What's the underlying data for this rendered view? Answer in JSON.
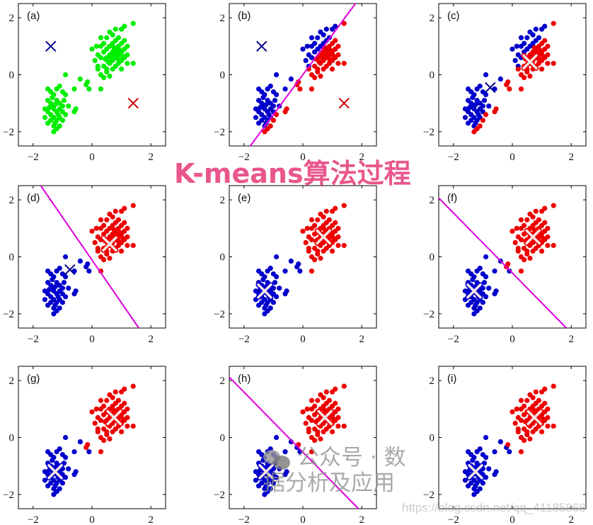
{
  "overlay_title": "K-means算法过程",
  "watermark": {
    "account": "公众号 · 数据分析及应用",
    "url": "https://blog.csdn.net/qq_41185868",
    "icon": "wechat-icon"
  },
  "colors": {
    "green": "#00ee00",
    "blue": "#0000cc",
    "red": "#ee0000",
    "boundary": "#dd00dd",
    "title": "#e8578c"
  },
  "chart_data": {
    "type": "scatter",
    "xlim": [
      -2.5,
      2.5
    ],
    "ylim": [
      -2.5,
      2.5
    ],
    "xticks": [
      "−2",
      "0",
      "2"
    ],
    "yticks": [
      "2",
      "0",
      "−2"
    ],
    "xtick_values": [
      -2,
      0,
      2
    ],
    "ytick_values": [
      2,
      0,
      -2
    ],
    "grid": false,
    "points": [
      [
        -1.5,
        -0.5
      ],
      [
        -1.4,
        -0.6
      ],
      [
        -1.3,
        -0.7
      ],
      [
        -1.2,
        -0.5
      ],
      [
        -1.1,
        -0.4
      ],
      [
        -1.0,
        -0.6
      ],
      [
        -0.9,
        -0.7
      ],
      [
        -1.5,
        -0.9
      ],
      [
        -1.4,
        -1.0
      ],
      [
        -1.3,
        -1.1
      ],
      [
        -1.2,
        -0.9
      ],
      [
        -1.1,
        -1.0
      ],
      [
        -1.0,
        -1.1
      ],
      [
        -1.6,
        -1.2
      ],
      [
        -1.5,
        -1.3
      ],
      [
        -1.4,
        -1.4
      ],
      [
        -1.3,
        -1.2
      ],
      [
        -1.2,
        -1.3
      ],
      [
        -1.1,
        -1.2
      ],
      [
        -1.0,
        -1.3
      ],
      [
        -1.4,
        -1.6
      ],
      [
        -1.3,
        -1.5
      ],
      [
        -1.2,
        -1.6
      ],
      [
        -1.1,
        -1.5
      ],
      [
        -1.5,
        -1.7
      ],
      [
        -1.3,
        -1.8
      ],
      [
        -1.2,
        -1.9
      ],
      [
        -1.1,
        -1.8
      ],
      [
        -1.0,
        -1.6
      ],
      [
        -1.3,
        -2.0
      ],
      [
        -1.6,
        -1.5
      ],
      [
        -0.9,
        -1.4
      ],
      [
        -0.8,
        -1.1
      ],
      [
        -0.6,
        -1.3
      ],
      [
        -0.55,
        -1.2
      ],
      [
        -0.95,
        -0.9
      ],
      [
        -1.35,
        -0.8
      ],
      [
        -1.25,
        -1.05
      ],
      [
        -1.45,
        -1.15
      ],
      [
        -1.15,
        -1.4
      ],
      [
        -1.25,
        -1.7
      ],
      [
        -0.9,
        0.0
      ],
      [
        -0.4,
        -0.15
      ],
      [
        -0.2,
        -0.35
      ],
      [
        -0.1,
        -0.5
      ],
      [
        -0.15,
        -0.25
      ],
      [
        0.3,
        -0.5
      ],
      [
        -0.6,
        -0.5
      ],
      [
        0.0,
        0.9
      ],
      [
        0.1,
        0.5
      ],
      [
        0.2,
        0.3
      ],
      [
        0.3,
        0.0
      ],
      [
        0.4,
        -0.1
      ],
      [
        0.5,
        0.1
      ],
      [
        0.6,
        -0.05
      ],
      [
        0.2,
        0.7
      ],
      [
        0.3,
        1.0
      ],
      [
        0.4,
        1.1
      ],
      [
        0.5,
        1.3
      ],
      [
        0.6,
        1.5
      ],
      [
        0.7,
        1.4
      ],
      [
        0.8,
        1.6
      ],
      [
        1.0,
        1.6
      ],
      [
        1.1,
        1.7
      ],
      [
        1.4,
        1.8
      ],
      [
        0.3,
        0.6
      ],
      [
        0.4,
        0.8
      ],
      [
        0.5,
        0.6
      ],
      [
        0.5,
        0.9
      ],
      [
        0.6,
        0.4
      ],
      [
        0.6,
        0.7
      ],
      [
        0.6,
        1.0
      ],
      [
        0.7,
        0.5
      ],
      [
        0.7,
        0.8
      ],
      [
        0.7,
        1.1
      ],
      [
        0.8,
        0.3
      ],
      [
        0.8,
        0.6
      ],
      [
        0.8,
        0.9
      ],
      [
        0.8,
        1.2
      ],
      [
        0.9,
        0.4
      ],
      [
        0.9,
        0.7
      ],
      [
        0.9,
        1.0
      ],
      [
        0.9,
        1.3
      ],
      [
        1.0,
        0.5
      ],
      [
        1.0,
        0.8
      ],
      [
        1.0,
        1.1
      ],
      [
        1.1,
        0.6
      ],
      [
        1.1,
        0.9
      ],
      [
        1.1,
        1.2
      ],
      [
        1.2,
        0.7
      ],
      [
        1.2,
        1.0
      ],
      [
        1.2,
        0.4
      ],
      [
        1.4,
        0.4
      ],
      [
        0.4,
        0.3
      ],
      [
        0.5,
        0.2
      ],
      [
        0.7,
        0.2
      ],
      [
        1.0,
        0.2
      ],
      [
        0.3,
        1.3
      ],
      [
        0.75,
        0.65
      ],
      [
        0.85,
        0.75
      ],
      [
        0.65,
        0.6
      ],
      [
        0.95,
        0.85
      ],
      [
        0.55,
        0.45
      ],
      [
        0.45,
        0.55
      ],
      [
        1.05,
        0.65
      ],
      [
        0.9,
        0.55
      ],
      [
        0.75,
        0.95
      ],
      [
        0.15,
        1.0
      ],
      [
        0.2,
        0.2
      ]
    ],
    "panels": [
      {
        "label": "(a)",
        "color_by": null,
        "boundary": false,
        "centroids": [
          {
            "cluster": "blue",
            "x": -1.4,
            "y": 1.0,
            "style": "cross"
          },
          {
            "cluster": "red",
            "x": 1.4,
            "y": -1.0,
            "style": "cross"
          }
        ]
      },
      {
        "label": "(b)",
        "color_by": [
          [
            -1.4,
            1.0
          ],
          [
            1.4,
            -1.0
          ]
        ],
        "boundary": true,
        "centroids": [
          {
            "cluster": "blue",
            "x": -1.4,
            "y": 1.0,
            "style": "cross"
          },
          {
            "cluster": "red",
            "x": 1.4,
            "y": -1.0,
            "style": "cross"
          }
        ]
      },
      {
        "label": "(c)",
        "color_by": [
          [
            -1.4,
            1.0
          ],
          [
            1.4,
            -1.0
          ]
        ],
        "boundary": false,
        "centroids": [
          {
            "cluster": "blue",
            "x": -0.75,
            "y": -0.45,
            "style": "cross"
          },
          {
            "cluster": "red",
            "x": 0.6,
            "y": 0.45,
            "style": "white-cross"
          }
        ]
      },
      {
        "label": "(d)",
        "color_by": [
          [
            -0.75,
            -0.45
          ],
          [
            0.6,
            0.45
          ]
        ],
        "boundary": true,
        "centroids": [
          {
            "cluster": "blue",
            "x": -0.75,
            "y": -0.45,
            "style": "cross"
          },
          {
            "cluster": "red",
            "x": 0.6,
            "y": 0.45,
            "style": "white-cross"
          }
        ]
      },
      {
        "label": "(e)",
        "color_by": [
          [
            -0.75,
            -0.45
          ],
          [
            0.6,
            0.45
          ]
        ],
        "boundary": false,
        "centroids": [
          {
            "cluster": "blue",
            "x": -1.3,
            "y": -1.2,
            "style": "white-cross"
          },
          {
            "cluster": "red",
            "x": 0.7,
            "y": 0.7,
            "style": "white-cross"
          }
        ]
      },
      {
        "label": "(f)",
        "color_by": [
          [
            -1.3,
            -1.2
          ],
          [
            0.7,
            0.7
          ]
        ],
        "boundary": true,
        "centroids": [
          {
            "cluster": "blue",
            "x": -1.3,
            "y": -1.2,
            "style": "white-cross"
          },
          {
            "cluster": "red",
            "x": 0.7,
            "y": 0.7,
            "style": "white-cross"
          }
        ]
      },
      {
        "label": "(g)",
        "color_by": [
          [
            -1.3,
            -1.2
          ],
          [
            0.7,
            0.7
          ]
        ],
        "boundary": false,
        "centroids": [
          {
            "cluster": "blue",
            "x": -1.25,
            "y": -1.2,
            "style": "white-cross"
          },
          {
            "cluster": "red",
            "x": 0.75,
            "y": 0.7,
            "style": "white-cross"
          }
        ]
      },
      {
        "label": "(h)",
        "color_by": [
          [
            -1.25,
            -1.2
          ],
          [
            0.75,
            0.7
          ]
        ],
        "boundary": true,
        "centroids": [
          {
            "cluster": "blue",
            "x": -1.25,
            "y": -1.2,
            "style": "white-cross"
          },
          {
            "cluster": "red",
            "x": 0.75,
            "y": 0.7,
            "style": "white-cross"
          }
        ]
      },
      {
        "label": "(i)",
        "color_by": [
          [
            -1.25,
            -1.2
          ],
          [
            0.75,
            0.7
          ]
        ],
        "boundary": false,
        "centroids": [
          {
            "cluster": "blue",
            "x": -1.25,
            "y": -1.2,
            "style": "white-cross"
          },
          {
            "cluster": "red",
            "x": 0.75,
            "y": 0.7,
            "style": "white-cross"
          }
        ]
      }
    ]
  }
}
